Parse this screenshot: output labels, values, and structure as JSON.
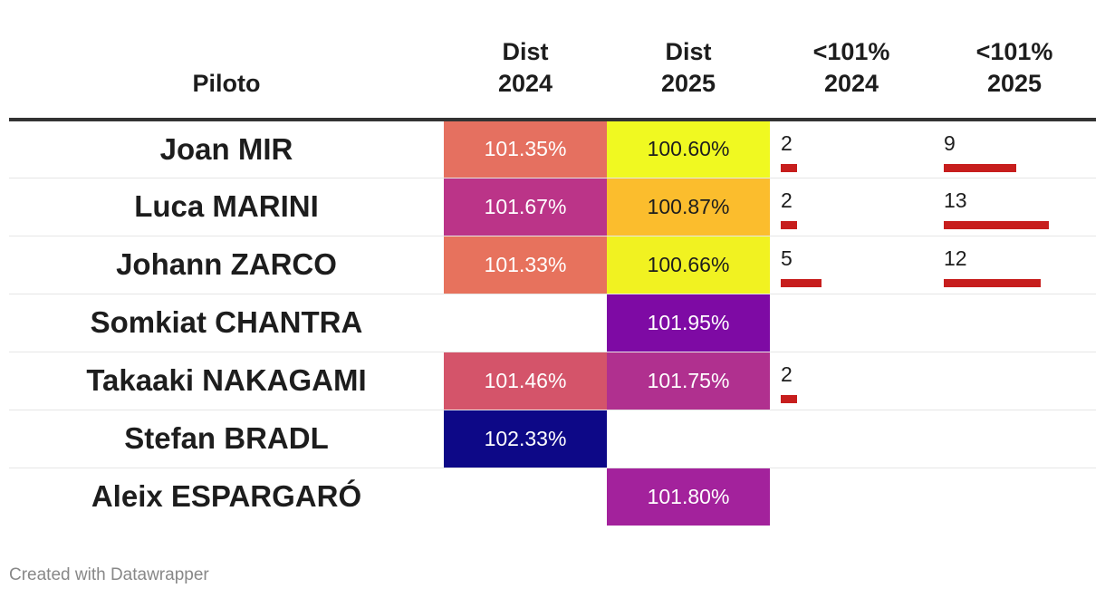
{
  "header": {
    "piloto": "Piloto",
    "dist2024": [
      "Dist",
      "2024"
    ],
    "dist2025": [
      "Dist",
      "2025"
    ],
    "pct2024": [
      "<101%",
      "2024"
    ],
    "pct2025": [
      "<101%",
      "2025"
    ]
  },
  "chart_data": {
    "type": "table",
    "columns": [
      "Piloto",
      "Dist 2024",
      "Dist 2025",
      "<101% 2024",
      "<101% 2025"
    ],
    "bar_max": 13,
    "colors": {
      "bar": "#c71e1d",
      "scale": [
        "#0d0887",
        "#7e03a8",
        "#cc4778",
        "#f89540",
        "#f0f921"
      ]
    },
    "rows": [
      {
        "name": "Joan MIR",
        "dist2024": "101.35%",
        "dist2025": "100.60%",
        "c2024": "#e57060",
        "c2025": "#f0f921",
        "u2024": 2,
        "u2025": 9
      },
      {
        "name": "Luca MARINI",
        "dist2024": "101.67%",
        "dist2025": "100.87%",
        "c2024": "#bb3488",
        "c2025": "#fbbd2d",
        "u2024": 2,
        "u2025": 13
      },
      {
        "name": "Johann ZARCO",
        "dist2024": "101.33%",
        "dist2025": "100.66%",
        "c2024": "#e7725d",
        "c2025": "#f1f221",
        "u2024": 5,
        "u2025": 12
      },
      {
        "name": "Somkiat CHANTRA",
        "dist2024": null,
        "dist2025": "101.95%",
        "c2024": null,
        "c2025": "#7e0aa4",
        "u2024": null,
        "u2025": null
      },
      {
        "name": "Takaaki NAKAGAMI",
        "dist2024": "101.46%",
        "dist2025": "101.75%",
        "c2024": "#d4546a",
        "c2025": "#b0308f",
        "u2024": 2,
        "u2025": null
      },
      {
        "name": "Stefan BRADL",
        "dist2024": "102.33%",
        "dist2025": null,
        "c2024": "#0d0887",
        "c2025": null,
        "u2024": null,
        "u2025": null
      },
      {
        "name": "Aleix ESPARGARÓ",
        "dist2024": null,
        "dist2025": "101.80%",
        "c2024": null,
        "c2025": "#a3229c",
        "u2024": null,
        "u2025": null
      }
    ]
  },
  "footer": "Created with Datawrapper"
}
